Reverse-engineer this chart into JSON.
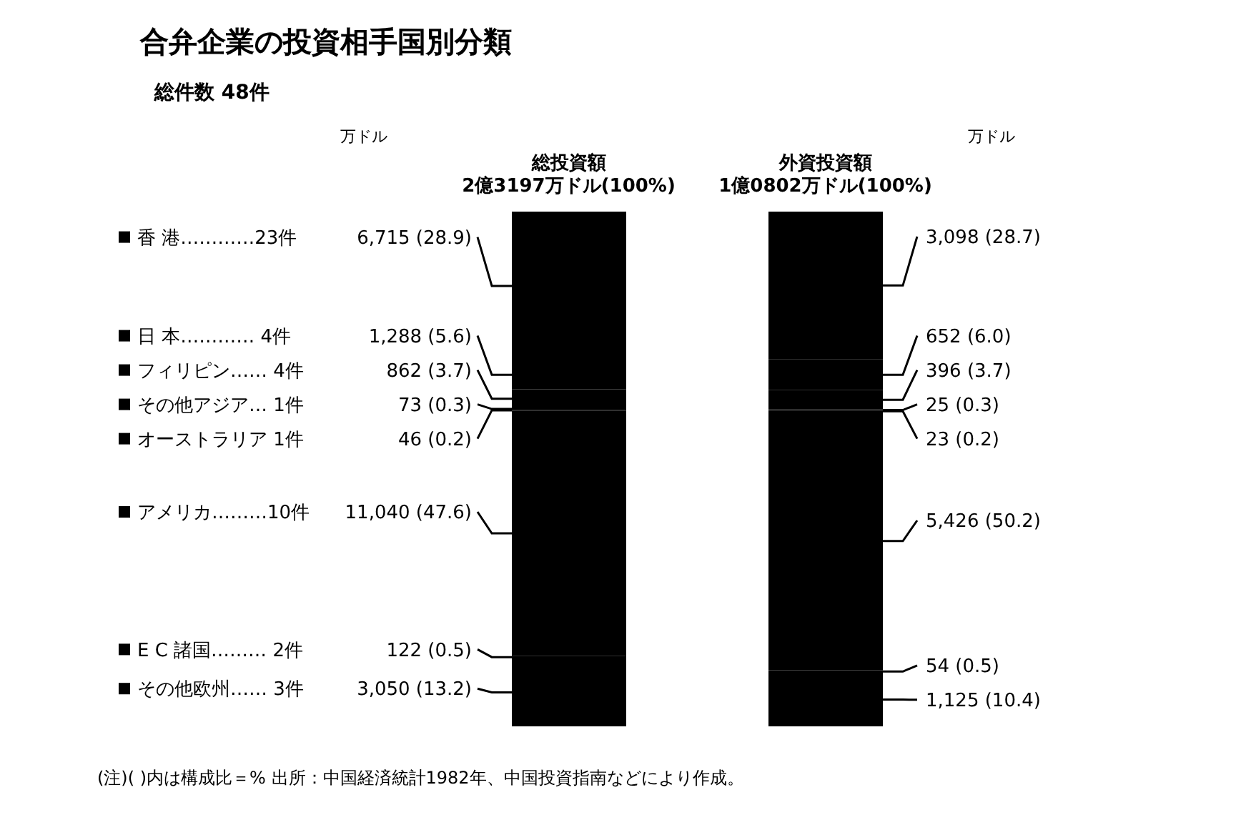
{
  "chart_data": {
    "type": "bar",
    "stacked": true,
    "title": "合弁企業の投資相手国別分類",
    "subtitle": "総件数 48件",
    "categories": [
      "総投資額 2億3197万ドル(100%)",
      "外資投資額 1億0802万ドル(100%)"
    ],
    "series": [
      {
        "name": "その他欧州…… 3件",
        "color": "#000000",
        "values": [
          13.2,
          10.4
        ],
        "value_labels": [
          "3,050 (13.2)",
          "1,125 (10.4)"
        ]
      },
      {
        "name": "E C 諸国……… 2件",
        "color": "#000000",
        "values": [
          0.5,
          0.5
        ],
        "value_labels": [
          "122 (0.5)",
          "54 (0.5)"
        ]
      },
      {
        "name": "アメリカ………10件",
        "color": "#000000",
        "values": [
          47.6,
          50.2
        ],
        "value_labels": [
          "11,040 (47.6)",
          "5,426 (50.2)"
        ]
      },
      {
        "name": "オーストラリア 1件",
        "color": "#000000",
        "values": [
          0.2,
          0.2
        ],
        "value_labels": [
          "46 (0.2)",
          "23 (0.2)"
        ]
      },
      {
        "name": "その他アジア… 1件",
        "color": "#000000",
        "values": [
          0.3,
          0.3
        ],
        "value_labels": [
          "73 (0.3)",
          "25 (0.3)"
        ]
      },
      {
        "name": "フィリピン…… 4件",
        "color": "#000000",
        "values": [
          3.7,
          3.7
        ],
        "value_labels": [
          "862 (3.7)",
          "396 (3.7)"
        ]
      },
      {
        "name": "日 本………… 4件",
        "color": "#000000",
        "values": [
          5.6,
          6.0
        ],
        "value_labels": [
          "1,288 (5.6)",
          "652 (6.0)"
        ]
      },
      {
        "name": "香 港…………23件",
        "color": "#000000",
        "values": [
          28.9,
          28.7
        ],
        "value_labels": [
          "6,715 (28.9)",
          "3,098 (28.7)"
        ]
      }
    ],
    "legend": "left",
    "annotations": [
      "万ドル",
      "万ドル",
      "(注)( )内は構成比＝% 出所：中国経済統計1982年、中国投資指南などにより作成。"
    ]
  }
}
